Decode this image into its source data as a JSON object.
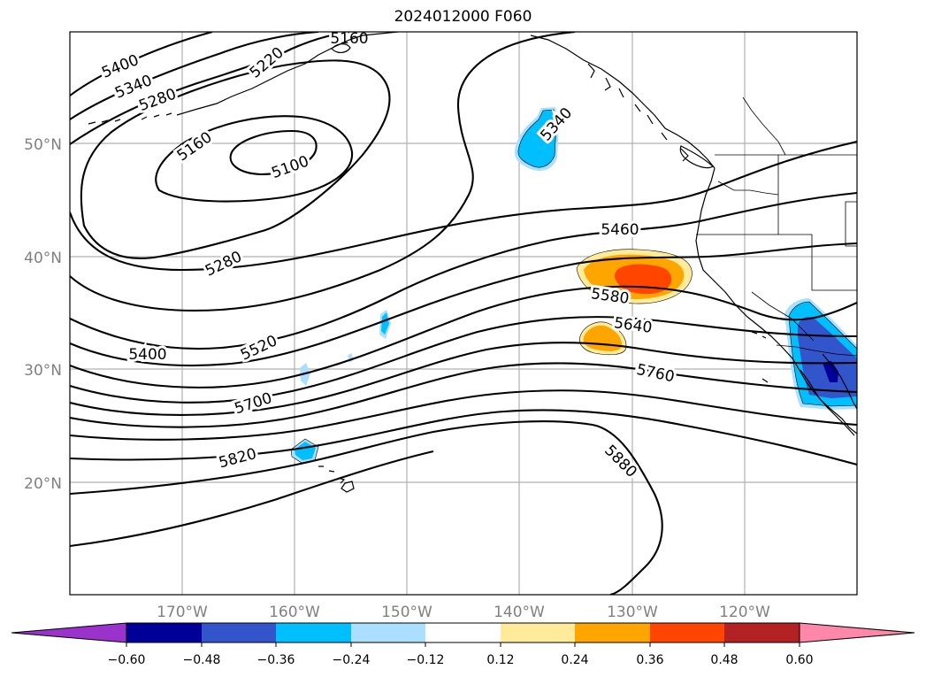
{
  "title": "2024012000 F060",
  "map": {
    "lat_labels": [
      "50°N",
      "40°N",
      "30°N",
      "20°N"
    ],
    "lon_labels": [
      "170°W",
      "160°W",
      "150°W",
      "140°W",
      "130°W",
      "120°W"
    ],
    "contour_labels": [
      "5400",
      "5340",
      "5280",
      "5220",
      "5160",
      "5160",
      "5100",
      "5280",
      "5400",
      "5520",
      "5700",
      "5820",
      "5340",
      "5460",
      "5580",
      "5640",
      "5760",
      "5880"
    ],
    "shading_palette": {
      "neg_060": "#9933cc",
      "neg_048": "#000099",
      "neg_036": "#3355cc",
      "neg_024": "#00bfff",
      "neg_012": "#aadfff",
      "pos_012": "#ffffff",
      "pos_024": "#ffeb99",
      "pos_036": "#ffa500",
      "pos_048": "#ff4500",
      "pos_060": "#b22222",
      "pos_max": "#ff88aa"
    }
  },
  "colorbar": {
    "colors": [
      "#9933cc",
      "#000099",
      "#3355cc",
      "#00bfff",
      "#aadfff",
      "#ffffff",
      "#ffeb99",
      "#ffa500",
      "#ff4500",
      "#b22222",
      "#ff88aa"
    ],
    "ticks": [
      "−0.60",
      "−0.48",
      "−0.36",
      "−0.24",
      "−0.12",
      "0.12",
      "0.24",
      "0.36",
      "0.48",
      "0.60"
    ]
  }
}
